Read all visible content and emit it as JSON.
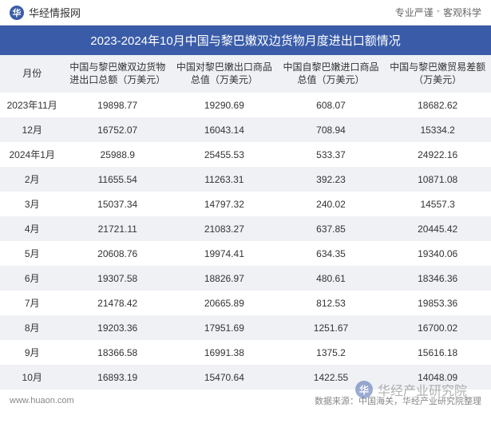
{
  "header": {
    "logo_text": "华经情报网",
    "logo_glyph": "华",
    "tagline_left": "专业严谨",
    "tagline_right": "客观科学"
  },
  "title": "2023-2024年10月中国与黎巴嫩双边货物月度进出口额情况",
  "table": {
    "columns": [
      "月份",
      "中国与黎巴嫩双边货物进出口总额（万美元）",
      "中国对黎巴嫩出口商品总值（万美元）",
      "中国自黎巴嫩进口商品总值（万美元）",
      "中国与黎巴嫩贸易差额（万美元）"
    ],
    "rows": [
      [
        "2023年11月",
        "19898.77",
        "19290.69",
        "608.07",
        "18682.62"
      ],
      [
        "12月",
        "16752.07",
        "16043.14",
        "708.94",
        "15334.2"
      ],
      [
        "2024年1月",
        "25988.9",
        "25455.53",
        "533.37",
        "24922.16"
      ],
      [
        "2月",
        "11655.54",
        "11263.31",
        "392.23",
        "10871.08"
      ],
      [
        "3月",
        "15037.34",
        "14797.32",
        "240.02",
        "14557.3"
      ],
      [
        "4月",
        "21721.11",
        "21083.27",
        "637.85",
        "20445.42"
      ],
      [
        "5月",
        "20608.76",
        "19974.41",
        "634.35",
        "19340.06"
      ],
      [
        "6月",
        "19307.58",
        "18826.97",
        "480.61",
        "18346.36"
      ],
      [
        "7月",
        "21478.42",
        "20665.89",
        "812.53",
        "19853.36"
      ],
      [
        "8月",
        "19203.36",
        "17951.69",
        "1251.67",
        "16700.02"
      ],
      [
        "9月",
        "18366.58",
        "16991.38",
        "1375.2",
        "15616.18"
      ],
      [
        "10月",
        "16893.19",
        "15470.64",
        "1422.55",
        "14048.09"
      ]
    ],
    "header_bg": "#f0f1f5",
    "row_even_bg": "#f0f1f5",
    "row_odd_bg": "#ffffff",
    "text_color": "#333333",
    "font_size": 12
  },
  "footer": {
    "url": "www.huaon.com",
    "source": "数据来源：中国海关，华经产业研究院整理"
  },
  "watermark": {
    "glyph": "华",
    "text": "华经产业研究院"
  },
  "colors": {
    "brand": "#3a5ca8",
    "title_bg": "#3a5ca8",
    "title_text": "#ffffff",
    "border": "#e0e0e0",
    "muted_text": "#888888"
  }
}
